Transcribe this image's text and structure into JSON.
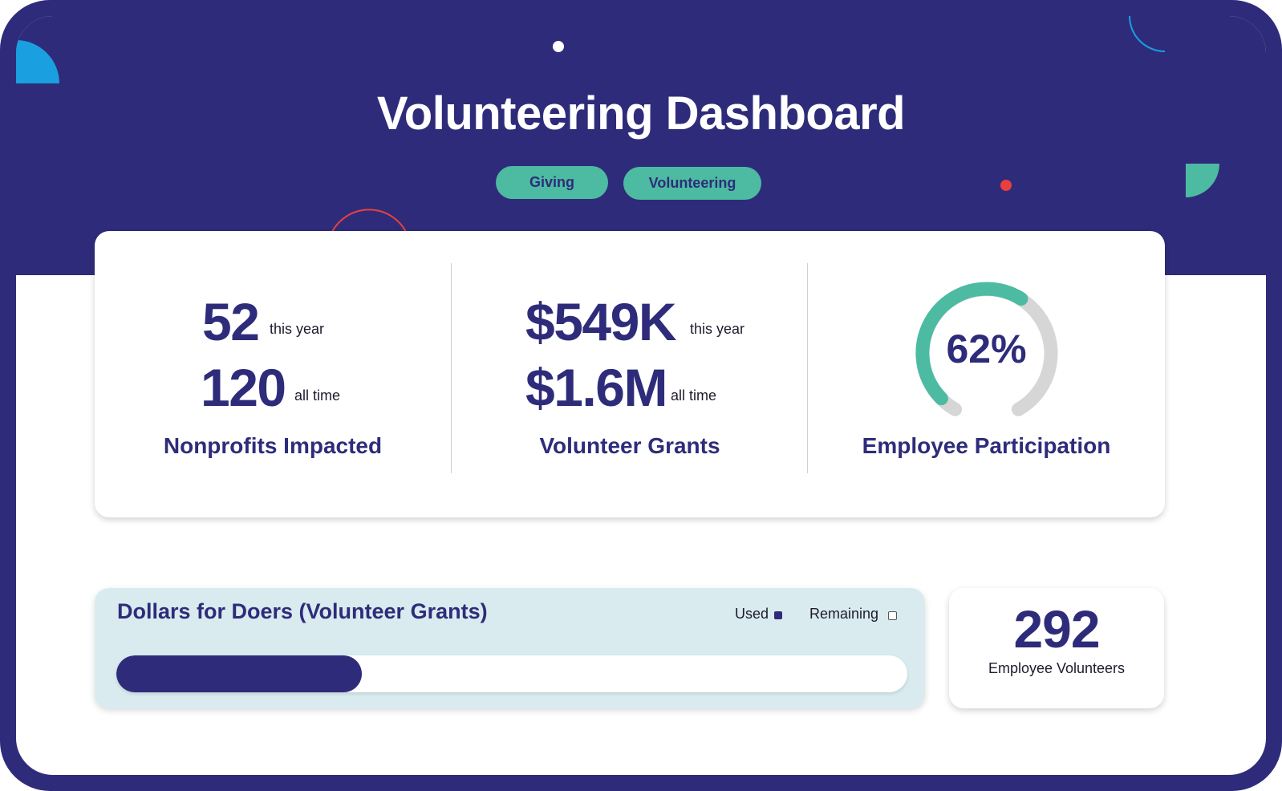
{
  "header": {
    "title": "Volunteering Dashboard",
    "tabs": [
      {
        "label": "Giving"
      },
      {
        "label": "Volunteering"
      }
    ]
  },
  "stats": {
    "nonprofits": {
      "this_year_value": "52",
      "this_year_label": "this year",
      "all_time_value": "120",
      "all_time_label": "all time",
      "label": "Nonprofits Impacted"
    },
    "grants": {
      "this_year_value": "$549K",
      "this_year_label": "this year",
      "all_time_value": "$1.6M",
      "all_time_label": "all time",
      "label": "Volunteer Grants"
    },
    "participation": {
      "percent_text": "62%",
      "percent": 62,
      "label": "Employee Participation"
    }
  },
  "budget": {
    "title": "Dollars for Doers (Volunteer Grants)",
    "legend_used": "Used",
    "legend_remaining": "Remaining",
    "used_fraction": 0.31
  },
  "volunteers": {
    "count": "292",
    "label": "Employee Volunteers"
  },
  "colors": {
    "navy": "#2e2c7a",
    "teal": "#4cbba2",
    "blue": "#1a9fe0",
    "red": "#e8403e",
    "gray_track": "#d6d6d6",
    "bar_bg": "#d9ebef"
  }
}
